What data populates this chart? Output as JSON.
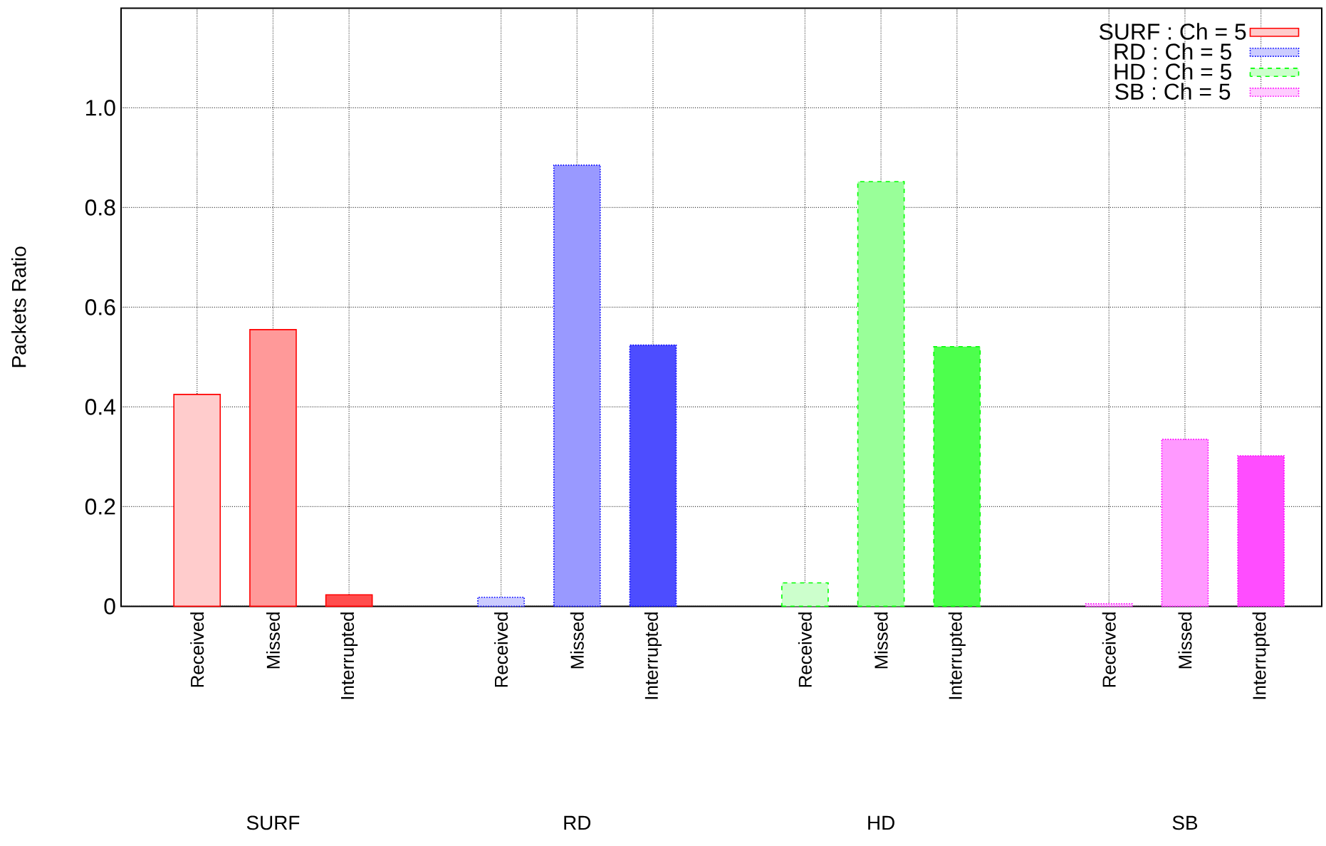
{
  "chart_data": {
    "type": "bar",
    "ylabel": "Packets Ratio",
    "categories": [
      "Received",
      "Missed",
      "Interrupted",
      null,
      "Received",
      "Missed",
      "Interrupted",
      null,
      "Received",
      "Missed",
      "Interrupted",
      null,
      "Received",
      "Missed",
      "Interrupted"
    ],
    "series": [
      {
        "name": "SURF : Ch = 5",
        "color": "#ff0000",
        "line_style": "solid",
        "values": [
          0.425,
          0.555,
          0.023,
          null,
          null,
          null,
          null,
          null,
          null,
          null,
          null,
          null,
          null,
          null,
          null
        ],
        "colors": [
          "#ffcccc",
          "#ff9999",
          "#ff4d4d",
          null,
          null,
          null,
          null,
          null,
          null,
          null,
          null,
          null,
          null,
          null,
          null
        ]
      },
      {
        "name": "RD : Ch = 5",
        "color": "#0000ff",
        "line_style": "dotted",
        "values": [
          null,
          null,
          null,
          null,
          0.018,
          0.885,
          0.524,
          null,
          null,
          null,
          null,
          null,
          null,
          null,
          null
        ],
        "colors": [
          null,
          null,
          null,
          null,
          "#ccccff",
          "#9999ff",
          "#4d4dff",
          null,
          null,
          null,
          null,
          null,
          null,
          null,
          null
        ]
      },
      {
        "name": "HD : Ch = 5",
        "color": "#00ff00",
        "line_style": "dashed",
        "values": [
          null,
          null,
          null,
          null,
          null,
          null,
          null,
          null,
          0.047,
          0.852,
          0.521,
          null,
          null,
          null,
          null
        ],
        "colors": [
          null,
          null,
          null,
          null,
          null,
          null,
          null,
          null,
          "#ccffcc",
          "#99ff99",
          "#4dff4d",
          null,
          null,
          null,
          null
        ]
      },
      {
        "name": "SB : Ch = 5",
        "color": "#ff00ff",
        "line_style": "dotted",
        "values": [
          null,
          null,
          null,
          null,
          null,
          null,
          null,
          null,
          null,
          null,
          null,
          null,
          0.005,
          0.335,
          0.302
        ],
        "colors": [
          null,
          null,
          null,
          null,
          null,
          null,
          null,
          null,
          null,
          null,
          null,
          null,
          "#ffccff",
          "#ff99ff",
          "#ff4dff"
        ]
      }
    ],
    "ylim": [
      0,
      1.2
    ],
    "yticks": [
      0,
      0.2,
      0.4,
      0.6,
      0.8,
      {
        "value": 1,
        "label": "1.0"
      }
    ],
    "grid": true,
    "legend": "top right",
    "annotations": [
      "SURF",
      "RD",
      "HD",
      "SB"
    ]
  }
}
